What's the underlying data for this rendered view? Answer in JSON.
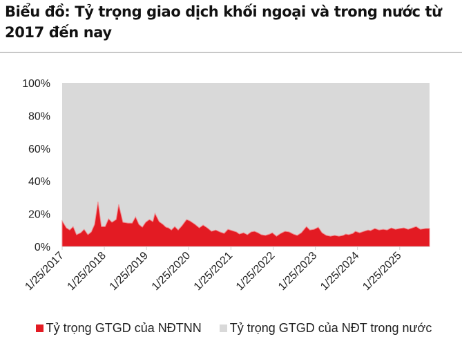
{
  "title": "Biểu đồ: Tỷ trọng giao dịch khối ngoại và trong nước từ 2017 đến nay",
  "colors": {
    "foreign": "#e31b23",
    "domestic": "#d9d9d9",
    "foreign_edge": "#f08a8e"
  },
  "legend": [
    {
      "label": "Tỷ trọng GTGD của NĐTNN",
      "color": "#e31b23"
    },
    {
      "label": "Tỷ trọng GTGD của NĐT trong nước",
      "color": "#d9d9d9"
    }
  ],
  "chart_data": {
    "type": "area",
    "stacked": true,
    "title": "Biểu đồ: Tỷ trọng giao dịch khối ngoại và trong nước từ 2017 đến nay",
    "xlabel": "",
    "ylabel": "",
    "ylim": [
      0,
      100
    ],
    "yticks": [
      "0%",
      "20%",
      "40%",
      "60%",
      "80%",
      "100%"
    ],
    "xticks": [
      "1/25/2017",
      "1/25/2018",
      "1/25/2019",
      "1/25/2020",
      "1/25/2021",
      "1/25/2022",
      "1/25/2023",
      "1/25/2024",
      "1/25/2025"
    ],
    "grid": false,
    "legend_position": "bottom",
    "x_fraction_note": "x as fractional years since 1/25/2017",
    "x": [
      0,
      0.1,
      0.18,
      0.26,
      0.34,
      0.44,
      0.52,
      0.61,
      0.69,
      0.77,
      0.85,
      0.93,
      1.02,
      1.1,
      1.18,
      1.28,
      1.34,
      1.44,
      1.56,
      1.66,
      1.74,
      1.82,
      1.9,
      1.98,
      2.07,
      2.15,
      2.2,
      2.3,
      2.39,
      2.46,
      2.52,
      2.59,
      2.67,
      2.75,
      2.84,
      2.95,
      3.03,
      3.15,
      3.25,
      3.34,
      3.44,
      3.54,
      3.64,
      3.74,
      3.84,
      3.93,
      4.03,
      4.13,
      4.2,
      4.3,
      4.39,
      4.48,
      4.56,
      4.64,
      4.72,
      4.82,
      4.92,
      4.98,
      5.08,
      5.18,
      5.28,
      5.38,
      5.48,
      5.57,
      5.67,
      5.79,
      5.87,
      5.97,
      6.07,
      6.16,
      6.26,
      6.36,
      6.46,
      6.56,
      6.66,
      6.72,
      6.79,
      6.89,
      6.95,
      7.05,
      7.15,
      7.25,
      7.31,
      7.41,
      7.51,
      7.61,
      7.7,
      7.8,
      7.9,
      8.0,
      8.1,
      8.2,
      8.3,
      8.39,
      8.49,
      8.62
    ],
    "series": [
      {
        "name": "Tỷ trọng GTGD của NĐTNN",
        "values": [
          15.6,
          11.4,
          10.1,
          12.2,
          7.2,
          8.4,
          10.5,
          7.2,
          8.9,
          13.5,
          27.4,
          12.2,
          12.2,
          16.9,
          14.8,
          16.5,
          25.7,
          14.8,
          14.3,
          14.3,
          18.1,
          13.5,
          11.8,
          14.8,
          16.5,
          15.2,
          20.3,
          15.2,
          13.5,
          11.8,
          11.4,
          10.1,
          12.2,
          10.1,
          12.7,
          16.5,
          15.6,
          13.5,
          11.4,
          13.1,
          11.4,
          9.3,
          10.1,
          8.9,
          8.0,
          10.5,
          9.7,
          8.9,
          7.6,
          8.4,
          7.2,
          8.9,
          9.3,
          8.4,
          7.2,
          6.8,
          7.6,
          8.4,
          6.3,
          8.0,
          9.3,
          8.9,
          7.6,
          6.8,
          8.4,
          12.2,
          10.1,
          10.5,
          11.8,
          8.4,
          6.8,
          6.3,
          6.8,
          6.3,
          6.8,
          7.6,
          7.2,
          8.0,
          9.3,
          8.4,
          9.3,
          10.1,
          9.7,
          11.0,
          10.1,
          10.5,
          10.1,
          11.4,
          10.5,
          11.0,
          11.4,
          10.5,
          11.4,
          12.2,
          10.5,
          11.0
        ]
      },
      {
        "name": "Tỷ trọng GTGD của NĐT trong nước",
        "values_note": "100 minus foreign share",
        "values": [
          84.4,
          88.6,
          89.9,
          87.8,
          92.8,
          91.6,
          89.5,
          92.8,
          91.1,
          86.5,
          72.6,
          87.8,
          87.8,
          83.1,
          85.2,
          83.5,
          74.3,
          85.2,
          85.7,
          85.7,
          81.9,
          86.5,
          88.2,
          85.2,
          83.5,
          84.8,
          79.7,
          84.8,
          86.5,
          88.2,
          88.6,
          89.9,
          87.8,
          89.9,
          87.3,
          83.5,
          84.4,
          86.5,
          88.6,
          86.9,
          88.6,
          90.7,
          89.9,
          91.1,
          92.0,
          89.5,
          90.3,
          91.1,
          92.4,
          91.6,
          92.8,
          91.1,
          90.7,
          91.6,
          92.8,
          93.2,
          92.4,
          91.6,
          93.7,
          92.0,
          90.7,
          91.1,
          92.4,
          93.2,
          91.6,
          87.8,
          89.9,
          89.5,
          88.2,
          91.6,
          93.2,
          93.7,
          93.2,
          93.7,
          93.2,
          92.4,
          92.8,
          92.0,
          90.7,
          91.6,
          90.7,
          89.9,
          90.3,
          89.0,
          89.9,
          89.5,
          89.9,
          88.6,
          89.5,
          89.0,
          88.6,
          89.5,
          88.6,
          87.8,
          89.5,
          89.0
        ]
      }
    ]
  }
}
